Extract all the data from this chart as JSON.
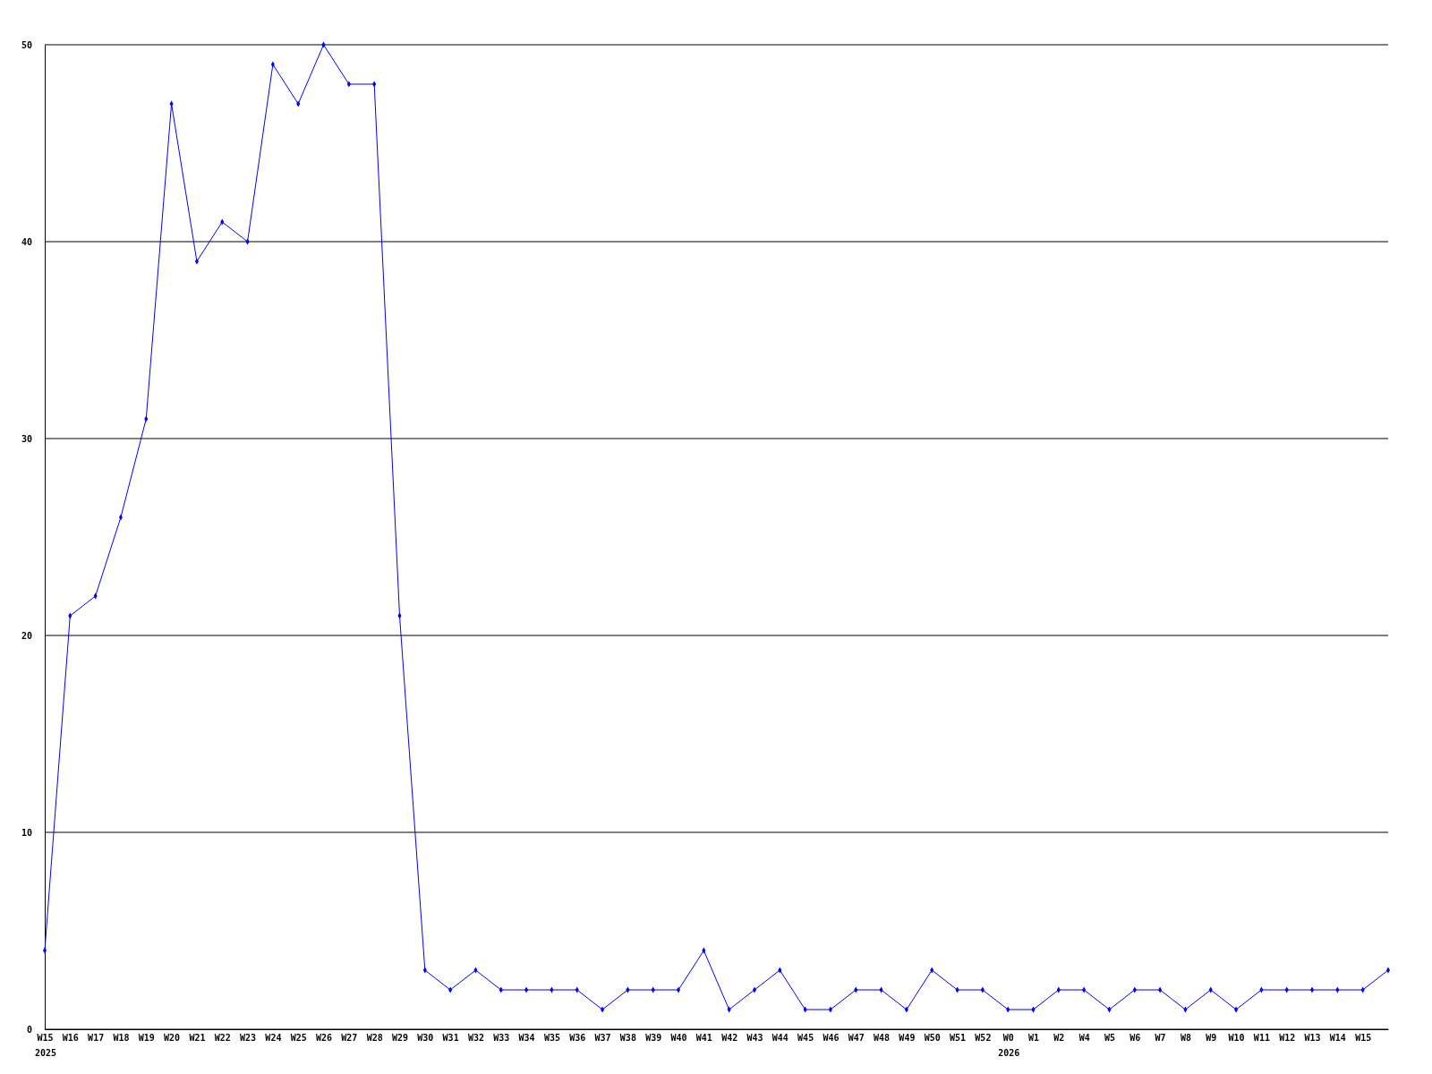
{
  "chart_data": {
    "type": "line",
    "categories": [
      "W15",
      "W16",
      "W17",
      "W18",
      "W19",
      "W20",
      "W21",
      "W22",
      "W23",
      "W24",
      "W25",
      "W26",
      "W27",
      "W28",
      "W29",
      "W30",
      "W31",
      "W32",
      "W33",
      "W34",
      "W35",
      "W36",
      "W37",
      "W38",
      "W39",
      "W40",
      "W41",
      "W42",
      "W43",
      "W44",
      "W45",
      "W46",
      "W47",
      "W48",
      "W49",
      "W50",
      "W51",
      "W52",
      "W0",
      "W1",
      "W2",
      "W4",
      "W5",
      "W6",
      "W7",
      "W8",
      "W9",
      "W10",
      "W11",
      "W12",
      "W13",
      "W14",
      "W15",
      null
    ],
    "series": [
      {
        "color": "#0000ff",
        "values": [
          4,
          21,
          22,
          26,
          31,
          47,
          39,
          41,
          40,
          49,
          47,
          50,
          48,
          48,
          21,
          3,
          2,
          3,
          2,
          2,
          2,
          2,
          1,
          2,
          2,
          2,
          4,
          1,
          2,
          3,
          1,
          1,
          2,
          2,
          1,
          3,
          2,
          2,
          1,
          1,
          2,
          2,
          1,
          2,
          2,
          1,
          2,
          1,
          2,
          2,
          2,
          2,
          2,
          3
        ]
      }
    ],
    "ylim": [
      0,
      50
    ],
    "yticks": [
      0,
      10,
      20,
      30,
      40,
      50
    ],
    "grid": "y",
    "marker": "diamond",
    "line_style": "solid",
    "annotations": [
      "2025",
      "2026"
    ]
  }
}
